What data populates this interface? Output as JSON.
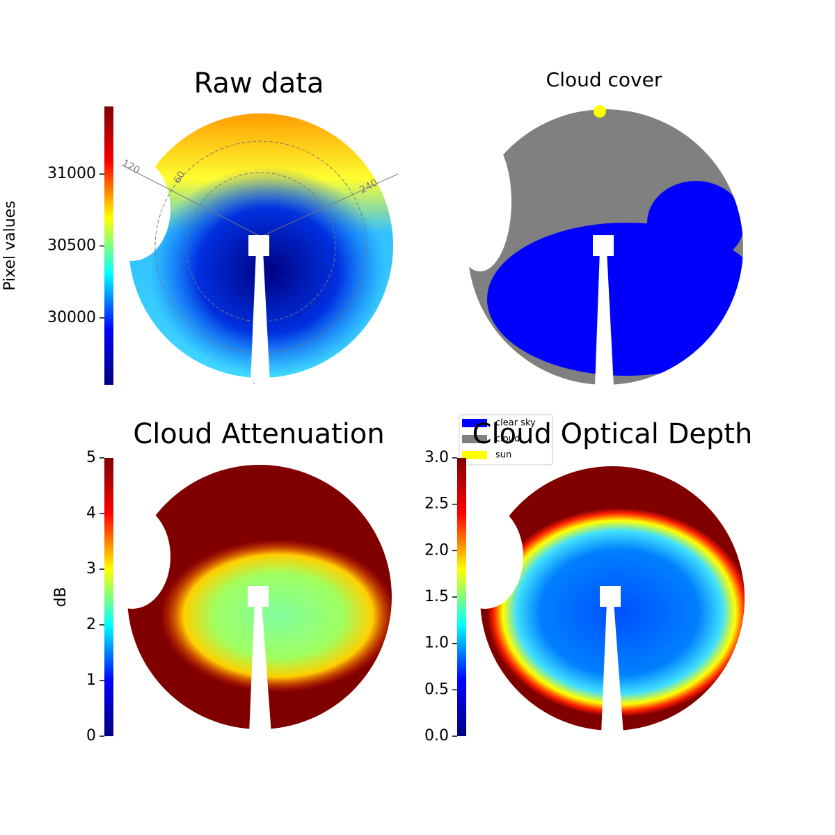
{
  "chart_data": [
    {
      "type": "image",
      "title": "Raw data",
      "colorbar": {
        "label": "Pixel values",
        "ylim": [
          29535,
          31470
        ],
        "yticks": [
          30000,
          30500,
          31000
        ],
        "colormap": [
          "#00007f",
          "#0000ff",
          "#00ffff",
          "#ffff00",
          "#ff0000",
          "#7f0000"
        ]
      },
      "annotations": [
        "120",
        "60",
        "240"
      ]
    },
    {
      "type": "image",
      "title": "Cloud cover",
      "legend": [
        {
          "name": "clear sky",
          "color": "#0000ff"
        },
        {
          "name": "cloud",
          "color": "#808080"
        },
        {
          "name": "sun",
          "color": "#ffff00"
        }
      ]
    },
    {
      "type": "image",
      "title": "Cloud Attenuation",
      "colorbar": {
        "label": "dB",
        "ylim": [
          0,
          5
        ],
        "yticks": [
          0,
          1,
          2,
          3,
          4,
          5
        ],
        "colormap": [
          "#00007f",
          "#0000ff",
          "#00ffff",
          "#ffff00",
          "#ff0000",
          "#7f0000"
        ]
      }
    },
    {
      "type": "image",
      "title": "Cloud Optical Depth",
      "colorbar": {
        "ylim": [
          0,
          3
        ],
        "yticks": [
          {
            "value": 0,
            "label": "0.0"
          },
          0.5,
          {
            "value": 1,
            "label": "1.0"
          },
          1.5,
          {
            "value": 2,
            "label": "2.0"
          },
          2.5,
          {
            "value": 3,
            "label": "3.0"
          }
        ],
        "colormap": [
          "#00007f",
          "#0000ff",
          "#00ffff",
          "#ffff00",
          "#ff0000",
          "#7f0000"
        ]
      }
    }
  ]
}
